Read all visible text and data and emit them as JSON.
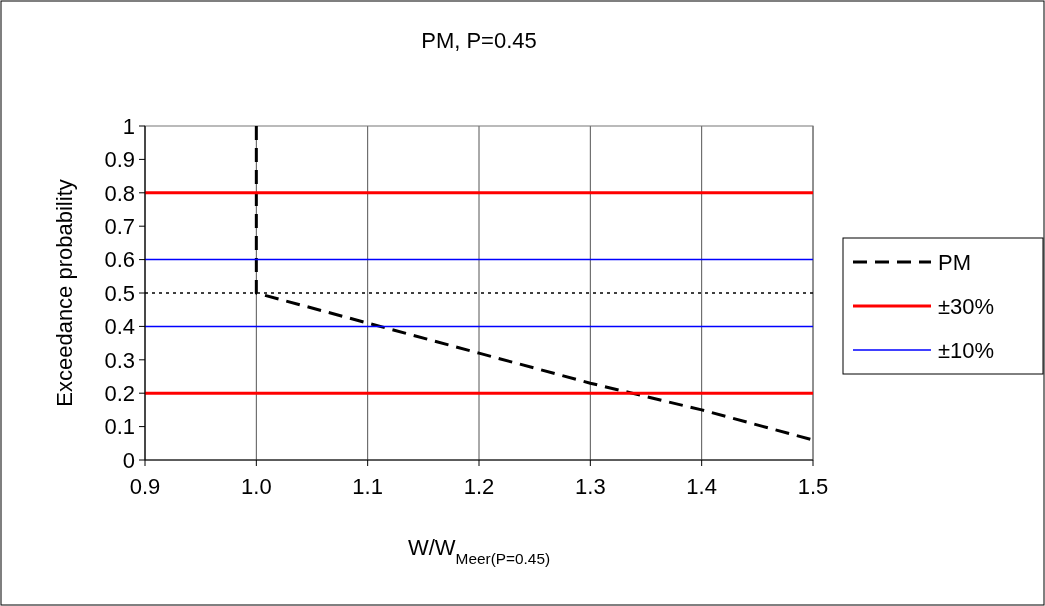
{
  "chart_data": {
    "type": "line",
    "title": "PM, P=0.45",
    "xlabel": "W/W$_{Meer(P=0.45)}$",
    "ylabel": "Exceedance probability",
    "xlim": [
      0.9,
      1.5
    ],
    "xticks": [
      0.9,
      {
        "value": 1.0,
        "label": "1.0"
      },
      1.1,
      1.2,
      1.3,
      1.4,
      1.5
    ],
    "ylim": [
      0,
      1
    ],
    "yticks": [
      0,
      0.1,
      0.2,
      0.3,
      0.4,
      0.5,
      0.6,
      0.7,
      0.8,
      0.9,
      1
    ],
    "grid": "x",
    "legend": "right",
    "series": [
      {
        "name": "PM",
        "color": "#000000",
        "line_style": "dashed",
        "x": [
          1.0,
          1.0,
          1.1,
          1.2,
          1.3,
          1.4,
          1.5
        ],
        "values": [
          1.0,
          0.5,
          0.41,
          0.32,
          0.23,
          0.15,
          0.06
        ]
      },
      {
        "name": "±30%",
        "color": "#ff0000",
        "line_style": "solid",
        "x": [
          0.9,
          1.5
        ],
        "values": [
          0.8,
          0.8
        ]
      },
      {
        "color": "#ff0000",
        "line_style": "solid",
        "x": [
          0.9,
          1.5
        ],
        "values": [
          0.2,
          0.2
        ]
      },
      {
        "name": "±10%",
        "color": "#0000ff",
        "line_style": "solid",
        "x": [
          0.9,
          1.5
        ],
        "values": [
          0.6,
          0.6
        ]
      },
      {
        "color": "#0000ff",
        "line_style": "solid",
        "x": [
          0.9,
          1.5
        ],
        "values": [
          0.4,
          0.4
        ]
      }
    ],
    "ref_lines": [
      {
        "axis": "y",
        "value": 0.5,
        "color": "#000000",
        "line_style": "dotted"
      }
    ]
  }
}
